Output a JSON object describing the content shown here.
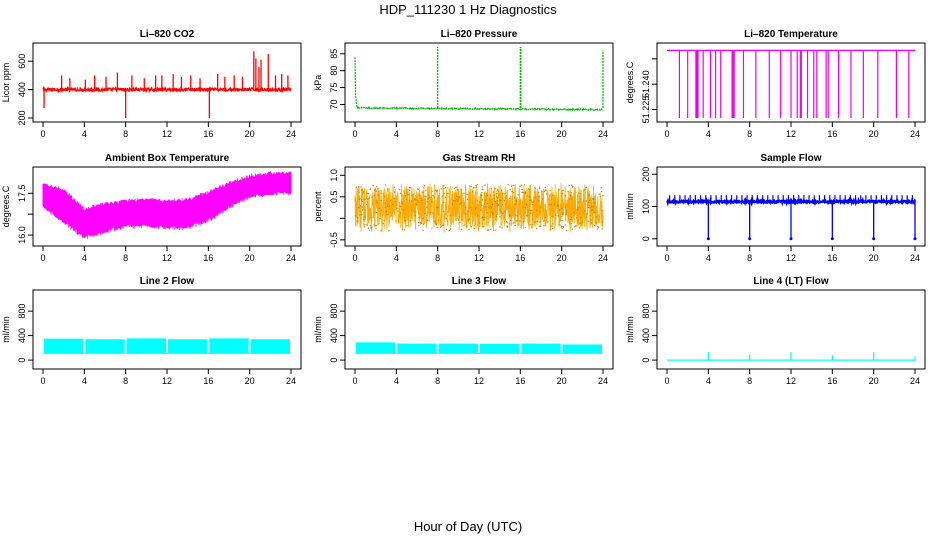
{
  "figure": {
    "title": "HDP_111230  1 Hz Diagnostics",
    "xlabel": "Hour of Day (UTC)"
  },
  "chart_data": [
    {
      "type": "line",
      "title": "Li–820 CO2",
      "ylabel": "Licor ppm",
      "color": "#ff0000",
      "xticks": [
        0,
        4,
        8,
        12,
        16,
        20,
        24
      ],
      "xlim": [
        0,
        24
      ],
      "yticks": [
        200,
        400,
        600
      ],
      "ylim": [
        200,
        700
      ],
      "pattern": "baseline",
      "baseline": 400,
      "noise": 12,
      "spikes": [
        [
          0.1,
          270
        ],
        [
          1.8,
          500
        ],
        [
          2.6,
          480
        ],
        [
          4.1,
          470
        ],
        [
          5.0,
          500
        ],
        [
          6.1,
          490
        ],
        [
          7.2,
          520
        ],
        [
          8.0,
          200
        ],
        [
          8.6,
          500
        ],
        [
          9.8,
          480
        ],
        [
          10.9,
          500
        ],
        [
          11.5,
          500
        ],
        [
          12.6,
          510
        ],
        [
          13.4,
          490
        ],
        [
          14.3,
          500
        ],
        [
          15.2,
          480
        ],
        [
          16.1,
          200
        ],
        [
          16.9,
          510
        ],
        [
          17.6,
          490
        ],
        [
          18.5,
          500
        ],
        [
          19.3,
          490
        ],
        [
          20.4,
          670
        ],
        [
          20.6,
          620
        ],
        [
          20.9,
          560
        ],
        [
          21.1,
          610
        ],
        [
          21.8,
          650
        ],
        [
          22.5,
          500
        ],
        [
          23.1,
          510
        ],
        [
          23.7,
          500
        ]
      ]
    },
    {
      "type": "line",
      "title": "Li–820 Pressure",
      "ylabel": "kPa",
      "color": "#00bb00",
      "xticks": [
        0,
        4,
        8,
        12,
        16,
        20,
        24
      ],
      "xlim": [
        0,
        24
      ],
      "yticks": [
        70,
        75,
        80,
        85
      ],
      "ylim": [
        66,
        87
      ],
      "pattern": "pressure",
      "spikes": [
        [
          8.0,
          87
        ],
        [
          16.0,
          87
        ],
        [
          16.05,
          87
        ],
        [
          24.0,
          86
        ]
      ]
    },
    {
      "type": "line",
      "title": "Li–820 Temperature",
      "ylabel": "degrees.C",
      "color": "#ee00ee",
      "xticks": [
        0,
        4,
        8,
        12,
        16,
        20,
        24
      ],
      "xlim": [
        0,
        24
      ],
      "yticks": [
        51.225,
        51.24,
        51.255
      ],
      "ytick_labels": [
        "51.225",
        "51.240",
        ""
      ],
      "ylim": [
        51.22,
        51.262
      ],
      "pattern": "drops",
      "top": 51.26,
      "drops": [
        1.2,
        2.0,
        2.8,
        2.9,
        3.0,
        3.5,
        4.2,
        4.7,
        5.2,
        6.3,
        6.4,
        6.5,
        7.4,
        8.6,
        9.9,
        11.0,
        12.0,
        12.6,
        12.9,
        13.0,
        13.6,
        14.2,
        14.5,
        15.4,
        15.6,
        16.6,
        17.8,
        19.0,
        20.4,
        22.2,
        23.4
      ]
    },
    {
      "type": "line",
      "title": "Ambient Box Temperature",
      "ylabel": "degrees.C",
      "color": "#ff00ff",
      "xticks": [
        0,
        4,
        8,
        12,
        16,
        20,
        24
      ],
      "xlim": [
        0,
        24
      ],
      "yticks": [
        16.0,
        16.75,
        17.5
      ],
      "ytick_labels": [
        "16.0",
        "",
        "17.5"
      ],
      "ylim": [
        15.75,
        18.3
      ],
      "pattern": "band",
      "lower": [
        [
          0,
          17.05
        ],
        [
          2,
          16.5
        ],
        [
          4,
          15.95
        ],
        [
          6,
          16.15
        ],
        [
          8,
          16.35
        ],
        [
          10,
          16.35
        ],
        [
          12,
          16.3
        ],
        [
          14,
          16.3
        ],
        [
          16,
          16.55
        ],
        [
          18,
          17.05
        ],
        [
          20,
          17.4
        ],
        [
          22,
          17.5
        ],
        [
          24,
          17.55
        ]
      ],
      "upper": [
        [
          0,
          17.8
        ],
        [
          2,
          17.6
        ],
        [
          4,
          16.9
        ],
        [
          6,
          17.1
        ],
        [
          8,
          17.2
        ],
        [
          10,
          17.25
        ],
        [
          12,
          17.2
        ],
        [
          14,
          17.25
        ],
        [
          16,
          17.5
        ],
        [
          18,
          17.85
        ],
        [
          20,
          18.1
        ],
        [
          22,
          18.2
        ],
        [
          24,
          18.2
        ]
      ]
    },
    {
      "type": "line",
      "title": "Gas Stream RH",
      "ylabel": "percent",
      "color": "#ffaa00",
      "xticks": [
        0,
        4,
        8,
        12,
        16,
        20,
        24
      ],
      "xlim": [
        0,
        24
      ],
      "yticks": [
        -0.5,
        0.0,
        0.5,
        1.0
      ],
      "ytick_labels": [
        "-0.5",
        "",
        "0.5",
        "1.0"
      ],
      "ylim": [
        -0.55,
        1.1
      ],
      "pattern": "noise",
      "center": 0.25,
      "amp": 0.6,
      "dotcolor": "#b8860b"
    },
    {
      "type": "line",
      "title": "Sample Flow",
      "ylabel": "ml/min",
      "color": "#0000ff",
      "xticks": [
        0,
        4,
        8,
        12,
        16,
        20,
        24
      ],
      "xlim": [
        0,
        24
      ],
      "yticks": [
        0,
        100,
        200
      ],
      "ylim": [
        -10,
        210
      ],
      "pattern": "flow",
      "baseline": 115,
      "high": 135,
      "drops": [
        4.0,
        8.0,
        12.0,
        16.0,
        20.0,
        24.0
      ]
    },
    {
      "type": "area",
      "title": "Line 2 Flow",
      "ylabel": "ml/min",
      "color": "#00ffff",
      "xticks": [
        0,
        4,
        8,
        12,
        16,
        20,
        24
      ],
      "xlim": [
        0,
        24
      ],
      "yticks": [
        0,
        400,
        800
      ],
      "ytick_labels": [
        "0",
        "400",
        "800"
      ],
      "ylim": [
        -80,
        1080
      ],
      "pattern": "blocks",
      "low": 110,
      "blocks": [
        [
          0,
          4,
          350
        ],
        [
          4,
          8,
          340
        ],
        [
          8,
          12,
          355
        ],
        [
          12,
          16,
          340
        ],
        [
          16,
          20,
          355
        ],
        [
          20,
          24,
          340
        ]
      ]
    },
    {
      "type": "area",
      "title": "Line 3 Flow",
      "ylabel": "ml/min",
      "color": "#00ffff",
      "xticks": [
        0,
        4,
        8,
        12,
        16,
        20,
        24
      ],
      "xlim": [
        0,
        24
      ],
      "yticks": [
        0,
        400,
        800
      ],
      "ytick_labels": [
        "0",
        "400",
        "800"
      ],
      "ylim": [
        -80,
        1080
      ],
      "pattern": "blocks",
      "low": 110,
      "blocks": [
        [
          0,
          4,
          290
        ],
        [
          4,
          8,
          270
        ],
        [
          8,
          12,
          270
        ],
        [
          12,
          16,
          265
        ],
        [
          16,
          20,
          270
        ],
        [
          20,
          24,
          255
        ]
      ]
    },
    {
      "type": "line",
      "title": "Line 4 (LT) Flow",
      "ylabel": "ml/min",
      "color": "#00ffff",
      "xticks": [
        0,
        4,
        8,
        12,
        16,
        20,
        24
      ],
      "xlim": [
        0,
        24
      ],
      "yticks": [
        0,
        400,
        800
      ],
      "ytick_labels": [
        "0",
        "400",
        "800"
      ],
      "ylim": [
        -80,
        1080
      ],
      "pattern": "baseline",
      "baseline": 0,
      "noise": 0,
      "spikes": [
        [
          4.0,
          130
        ],
        [
          8.0,
          90
        ],
        [
          12.0,
          130
        ],
        [
          16.0,
          80
        ],
        [
          20.0,
          130
        ],
        [
          24.0,
          60
        ]
      ]
    }
  ]
}
